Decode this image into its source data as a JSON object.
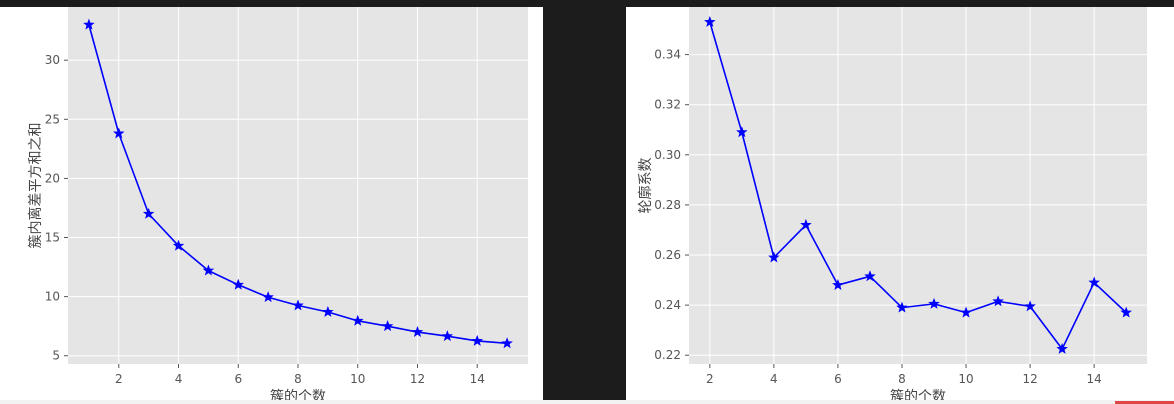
{
  "chart_data": [
    {
      "type": "line",
      "xlabel": "簇的个数",
      "ylabel": "簇内离差平方和之和",
      "xlim": [
        0.3,
        15.7
      ],
      "ylim": [
        4.3,
        34.5
      ],
      "xticks": [
        2,
        4,
        6,
        8,
        10,
        12,
        14
      ],
      "yticks": [
        5,
        10,
        15,
        20,
        25,
        30
      ],
      "grid": true,
      "series": [
        {
          "marker": "star",
          "color": "#0000ff",
          "x": [
            1,
            2,
            3,
            4,
            5,
            6,
            7,
            8,
            9,
            10,
            11,
            12,
            13,
            14,
            15
          ],
          "y": [
            33.0,
            23.8,
            17.0,
            14.3,
            12.2,
            11.0,
            9.95,
            9.25,
            8.7,
            7.95,
            7.5,
            7.0,
            6.65,
            6.25,
            6.05
          ]
        }
      ]
    },
    {
      "type": "line",
      "xlabel": "簇的个数",
      "ylabel": "轮廓系数",
      "xlim": [
        1.35,
        15.65
      ],
      "ylim": [
        0.2165,
        0.359
      ],
      "xticks": [
        2,
        4,
        6,
        8,
        10,
        12,
        14
      ],
      "yticks": [
        0.22,
        0.24,
        0.26,
        0.28,
        0.3,
        0.32,
        0.34
      ],
      "grid": true,
      "series": [
        {
          "marker": "star",
          "color": "#0000ff",
          "x": [
            2,
            3,
            4,
            5,
            6,
            7,
            8,
            9,
            10,
            11,
            12,
            13,
            14,
            15
          ],
          "y": [
            0.353,
            0.309,
            0.259,
            0.272,
            0.248,
            0.2515,
            0.239,
            0.2405,
            0.237,
            0.2415,
            0.2395,
            0.2225,
            0.249,
            0.237
          ]
        }
      ]
    }
  ],
  "colors": {
    "plot_background": "#e5e5e5",
    "grid": "#ffffff",
    "line": "#0000ff",
    "tick_text": "#555555",
    "label_text": "#444444"
  }
}
